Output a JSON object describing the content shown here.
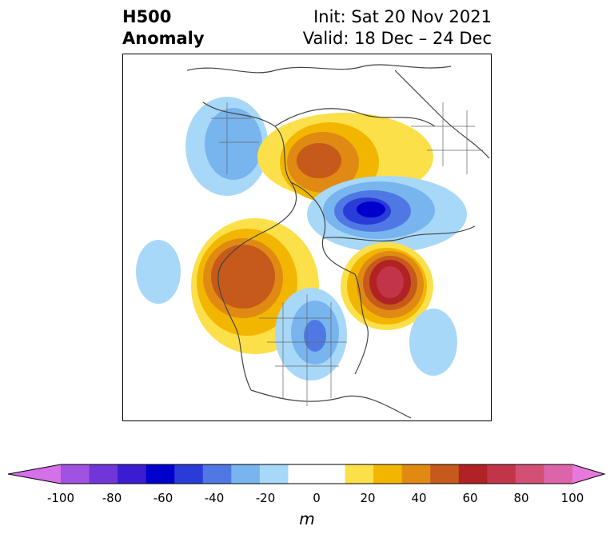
{
  "title": {
    "left_line1": "H500",
    "left_line2": "Anomaly",
    "right_line1": "Init: Sat 20 Nov 2021",
    "right_line2": "Valid: 18 Dec – 24 Dec"
  },
  "colorbar": {
    "ticks": [
      "-100",
      "-80",
      "-60",
      "-40",
      "-20",
      "0",
      "20",
      "40",
      "60",
      "80",
      "100"
    ],
    "unit": "m",
    "colors": [
      "#d470e8",
      "#a052e0",
      "#7036d8",
      "#3c1cd0",
      "#0000cc",
      "#2a3cd8",
      "#5078e4",
      "#78b4ee",
      "#a8d8f8",
      "#ffffff",
      "#ffffff",
      "#fce04a",
      "#f2b600",
      "#e08a14",
      "#c65a1a",
      "#b02224",
      "#c23448",
      "#d25074",
      "#dc64a8",
      "#e878dc"
    ]
  }
}
